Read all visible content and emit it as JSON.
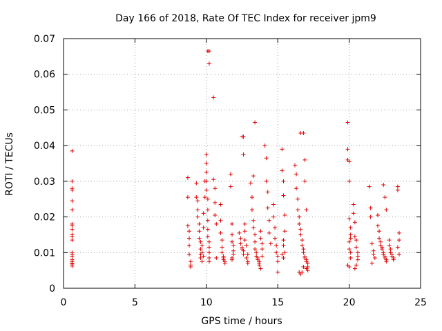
{
  "chart_data": {
    "type": "scatter",
    "title": "Day 166 of 2018, Rate Of TEC Index for receiver jpm9",
    "xlabel": "GPS time / hours",
    "ylabel": "ROTI / TECUs",
    "xlim": [
      0,
      25
    ],
    "ylim": [
      0,
      0.07
    ],
    "xticks": [
      0,
      5,
      10,
      15,
      20,
      25
    ],
    "xtick_labels": [
      "0",
      "5",
      "10",
      "15",
      "20",
      "25"
    ],
    "yticks": [
      0,
      0.01,
      0.02,
      0.03,
      0.04,
      0.05,
      0.06,
      0.07
    ],
    "ytick_labels": [
      "0",
      "0.01",
      "0.02",
      "0.03",
      "0.04",
      "0.05",
      "0.06",
      "0.07"
    ],
    "grid": true,
    "marker": "plus",
    "marker_color": "#e00000",
    "series": [
      {
        "name": "ROTI",
        "x": [
          0.6,
          0.6,
          0.6,
          0.6,
          0.6,
          0.6,
          0.6,
          0.6,
          0.6,
          0.6,
          0.6,
          0.6,
          0.6,
          0.6,
          0.6,
          0.6,
          0.6,
          0.6,
          0.6,
          0.6,
          8.7,
          8.7,
          8.7,
          8.8,
          8.8,
          8.8,
          8.8,
          8.9,
          8.9,
          8.9,
          9.3,
          9.3,
          9.4,
          9.4,
          9.4,
          9.5,
          9.5,
          9.5,
          9.6,
          9.6,
          9.6,
          9.6,
          9.7,
          9.7,
          9.7,
          9.8,
          9.8,
          9.8,
          9.9,
          9.9,
          10.0,
          10.0,
          10.0,
          10.0,
          10.0,
          10.1,
          10.1,
          10.1,
          10.1,
          10.1,
          10.2,
          10.2,
          10.2,
          10.2,
          10.2,
          10.1,
          10.2,
          10.2,
          10.5,
          10.5,
          10.6,
          10.6,
          10.6,
          10.7,
          10.7,
          11.0,
          11.0,
          11.0,
          11.1,
          11.1,
          11.1,
          11.2,
          11.2,
          11.2,
          11.3,
          11.3,
          11.7,
          11.7,
          11.8,
          11.8,
          11.8,
          11.9,
          11.9,
          11.9,
          11.8,
          11.8,
          12.3,
          12.4,
          12.4,
          12.5,
          12.5,
          12.6,
          12.6,
          12.7,
          12.7,
          12.7,
          12.8,
          12.8,
          12.9,
          12.9,
          12.9,
          12.6,
          12.6,
          12.5,
          13.1,
          13.2,
          13.2,
          13.3,
          13.3,
          13.4,
          13.4,
          13.4,
          13.5,
          13.5,
          13.6,
          13.6,
          13.7,
          13.7,
          13.3,
          13.4,
          13.8,
          13.8,
          13.9,
          13.9,
          13.9,
          13.7,
          13.8,
          14.1,
          14.2,
          14.2,
          14.3,
          14.3,
          14.4,
          14.4,
          14.5,
          14.7,
          14.7,
          14.8,
          14.8,
          14.9,
          14.9,
          15.0,
          15.0,
          15.0,
          15.3,
          15.3,
          15.4,
          15.4,
          15.5,
          15.5,
          15.4,
          15.4,
          15.5,
          15.3,
          15.4,
          16.2,
          16.3,
          16.3,
          16.4,
          16.4,
          16.5,
          16.5,
          16.6,
          16.6,
          16.7,
          16.7,
          16.8,
          16.8,
          16.9,
          16.9,
          17.0,
          17.0,
          17.1,
          17.1,
          16.6,
          16.8,
          16.9,
          16.9,
          17.0,
          16.5,
          16.6,
          16.7,
          16.8,
          17.0,
          17.1,
          19.9,
          19.9,
          19.9,
          20.0,
          20.0,
          20.0,
          20.1,
          20.1,
          20.1,
          20.0,
          20.0,
          20.1,
          20.1,
          19.9,
          20.0,
          20.3,
          20.3,
          20.4,
          20.4,
          20.5,
          20.5,
          20.6,
          20.6,
          20.6,
          20.5,
          20.4,
          21.4,
          21.5,
          21.5,
          21.6,
          21.7,
          21.7,
          21.8,
          21.6,
          22.0,
          22.0,
          22.1,
          22.1,
          22.2,
          22.2,
          22.3,
          22.3,
          22.4,
          22.4,
          22.5,
          22.5,
          22.6,
          22.6,
          22.4,
          22.5,
          22.6,
          22.8,
          22.8,
          22.9,
          22.9,
          23.0,
          23.0,
          23.1,
          23.1,
          23.4,
          23.4,
          23.5,
          23.5,
          23.4,
          23.5
        ],
        "y": [
          0.0385,
          0.03,
          0.028,
          0.0275,
          0.0245,
          0.022,
          0.018,
          0.0175,
          0.0165,
          0.015,
          0.0145,
          0.0135,
          0.01,
          0.0095,
          0.009,
          0.008,
          0.0075,
          0.007,
          0.0068,
          0.0062,
          0.031,
          0.0255,
          0.0175,
          0.016,
          0.014,
          0.012,
          0.0095,
          0.0075,
          0.0065,
          0.006,
          0.0295,
          0.0255,
          0.0245,
          0.022,
          0.02,
          0.018,
          0.016,
          0.014,
          0.013,
          0.011,
          0.0095,
          0.0085,
          0.012,
          0.01,
          0.0075,
          0.021,
          0.017,
          0.009,
          0.03,
          0.0255,
          0.0375,
          0.035,
          0.0325,
          0.03,
          0.0275,
          0.025,
          0.022,
          0.019,
          0.0165,
          0.0145,
          0.013,
          0.0115,
          0.01,
          0.0085,
          0.0075,
          0.0665,
          0.063,
          0.0665,
          0.0535,
          0.0305,
          0.028,
          0.024,
          0.0205,
          0.018,
          0.0085,
          0.0235,
          0.019,
          0.0155,
          0.0135,
          0.0115,
          0.01,
          0.009,
          0.0085,
          0.008,
          0.0075,
          0.007,
          0.032,
          0.0285,
          0.018,
          0.015,
          0.013,
          0.012,
          0.0105,
          0.0095,
          0.0085,
          0.008,
          0.0155,
          0.014,
          0.0125,
          0.0115,
          0.011,
          0.0105,
          0.0095,
          0.018,
          0.016,
          0.0135,
          0.012,
          0.0085,
          0.0095,
          0.0075,
          0.007,
          0.0425,
          0.0375,
          0.0425,
          0.0295,
          0.0255,
          0.022,
          0.019,
          0.017,
          0.015,
          0.013,
          0.011,
          0.01,
          0.009,
          0.0085,
          0.008,
          0.0075,
          0.007,
          0.0315,
          0.0465,
          0.016,
          0.014,
          0.0125,
          0.011,
          0.009,
          0.0065,
          0.0055,
          0.04,
          0.0365,
          0.03,
          0.027,
          0.0225,
          0.019,
          0.0155,
          0.0125,
          0.0235,
          0.02,
          0.017,
          0.014,
          0.012,
          0.01,
          0.009,
          0.0075,
          0.0045,
          0.039,
          0.033,
          0.03,
          0.026,
          0.0205,
          0.016,
          0.0135,
          0.012,
          0.01,
          0.0095,
          0.0085,
          0.0345,
          0.032,
          0.028,
          0.025,
          0.022,
          0.02,
          0.018,
          0.0165,
          0.015,
          0.0135,
          0.012,
          0.011,
          0.01,
          0.009,
          0.0085,
          0.008,
          0.0075,
          0.007,
          0.006,
          0.0435,
          0.0435,
          0.036,
          0.03,
          0.022,
          0.0045,
          0.004,
          0.0045,
          0.006,
          0.0055,
          0.005,
          0.0465,
          0.039,
          0.036,
          0.0355,
          0.03,
          0.0195,
          0.017,
          0.015,
          0.014,
          0.013,
          0.011,
          0.01,
          0.0085,
          0.0065,
          0.006,
          0.0235,
          0.021,
          0.0185,
          0.0145,
          0.0135,
          0.0115,
          0.01,
          0.009,
          0.008,
          0.0065,
          0.0055,
          0.0285,
          0.0225,
          0.02,
          0.0125,
          0.0105,
          0.0095,
          0.0085,
          0.007,
          0.0205,
          0.0175,
          0.016,
          0.014,
          0.013,
          0.012,
          0.0115,
          0.011,
          0.01,
          0.0095,
          0.009,
          0.0085,
          0.008,
          0.0075,
          0.029,
          0.0255,
          0.022,
          0.0135,
          0.012,
          0.011,
          0.01,
          0.0095,
          0.009,
          0.0085,
          0.008,
          0.0285,
          0.0275,
          0.0155,
          0.0135,
          0.0115,
          0.0095
        ]
      }
    ]
  }
}
